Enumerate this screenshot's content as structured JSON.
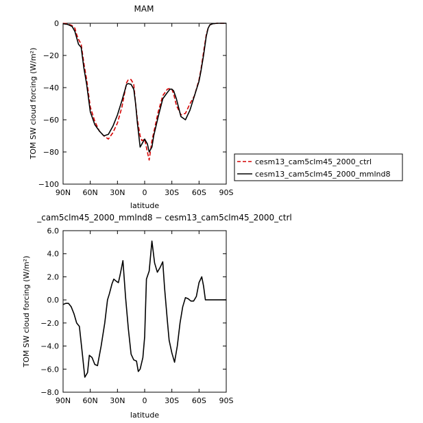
{
  "chart_data": [
    {
      "type": "line",
      "title": "MAM",
      "xlabel": "latitude",
      "ylabel": "TOM SW cloud forcing (W/m²)",
      "xlim": [
        90,
        -90
      ],
      "ylim": [
        -100,
        0
      ],
      "xticks": [
        90,
        60,
        30,
        0,
        -30,
        -60,
        -90
      ],
      "xtick_labels": [
        "90N",
        "60N",
        "30N",
        "0",
        "30S",
        "60S",
        "90S"
      ],
      "yticks": [
        0,
        -20,
        -40,
        -60,
        -80,
        -100
      ],
      "ytick_labels": [
        "0",
        "−20",
        "−40",
        "−60",
        "−80",
        "−100"
      ],
      "legend": "right",
      "series": [
        {
          "name": "cesm13_cam5clm45_2000_ctrl",
          "color": "#d40000",
          "dash": true,
          "x": [
            90,
            85,
            80,
            77,
            75,
            73,
            70,
            67,
            64,
            60,
            55,
            50,
            45,
            40,
            35,
            30,
            25,
            20,
            18,
            15,
            12,
            10,
            8,
            5,
            3,
            0,
            -3,
            -5,
            -8,
            -10,
            -15,
            -20,
            -25,
            -28,
            -30,
            -32,
            -35,
            -40,
            -45,
            -50,
            -55,
            -60,
            -62,
            -65,
            -68,
            -70,
            -72,
            -75,
            -80,
            -85,
            -90
          ],
          "y": [
            0,
            -0.3,
            -1.5,
            -3,
            -7,
            -10,
            -13,
            -25,
            -35,
            -52,
            -61,
            -67,
            -70,
            -72,
            -68,
            -62,
            -52,
            -37,
            -35,
            -35,
            -38,
            -50,
            -60,
            -70,
            -73,
            -72,
            -80,
            -85,
            -73,
            -68,
            -55,
            -45,
            -41,
            -40.5,
            -41,
            -44,
            -51,
            -57,
            -56,
            -50,
            -45,
            -35,
            -29,
            -18,
            -7,
            -3,
            -1,
            -0.3,
            0,
            0,
            0
          ]
        },
        {
          "name": "cesm13_cam5clm45_2000_mmlnd8",
          "color": "#000000",
          "dash": false,
          "x": [
            90,
            85,
            80,
            77,
            75,
            73,
            70,
            67,
            64,
            60,
            55,
            50,
            45,
            40,
            35,
            30,
            25,
            20,
            18,
            15,
            12,
            10,
            8,
            5,
            3,
            0,
            -3,
            -5,
            -8,
            -10,
            -15,
            -20,
            -25,
            -28,
            -30,
            -32,
            -35,
            -40,
            -45,
            -50,
            -55,
            -60,
            -62,
            -65,
            -68,
            -70,
            -72,
            -75,
            -80,
            -85,
            -90
          ],
          "y": [
            -0.3,
            -0.7,
            -2,
            -5,
            -9,
            -13,
            -15,
            -28,
            -38,
            -55,
            -63,
            -67,
            -70,
            -69,
            -64,
            -57,
            -48,
            -38,
            -37.5,
            -38,
            -41,
            -50,
            -62,
            -77,
            -75,
            -72,
            -75,
            -80,
            -77,
            -70,
            -58,
            -47,
            -43,
            -41,
            -41,
            -42,
            -47,
            -58,
            -60,
            -54,
            -45,
            -36,
            -30,
            -20,
            -8,
            -3,
            -1,
            -0.3,
            0,
            0,
            0
          ]
        }
      ]
    },
    {
      "type": "line",
      "title": "_cam5clm45_2000_mmlnd8 − cesm13_cam5clm45_2000_ctrl",
      "xlabel": "latitude",
      "ylabel": "TOM SW cloud forcing (W/m²)",
      "xlim": [
        90,
        -90
      ],
      "ylim": [
        -8,
        6
      ],
      "xticks": [
        90,
        60,
        30,
        0,
        -30,
        -60,
        -90
      ],
      "xtick_labels": [
        "90N",
        "60N",
        "30N",
        "0",
        "30S",
        "60S",
        "90S"
      ],
      "yticks": [
        6,
        4,
        2,
        0,
        -2,
        -4,
        -6,
        -8
      ],
      "ytick_labels": [
        "6.0",
        "4.0",
        "2.0",
        "0.0",
        "−2.0",
        "−4.0",
        "−6.0",
        "−8.0"
      ],
      "series": [
        {
          "name": "",
          "color": "#000000",
          "dash": false,
          "x": [
            90,
            87,
            84,
            81,
            78,
            75,
            72,
            69,
            66,
            63,
            61,
            58,
            55,
            52,
            48,
            44,
            41,
            39,
            36,
            34,
            31,
            29,
            27,
            24,
            21,
            18,
            15,
            12,
            9,
            7,
            5,
            2,
            0,
            -2,
            -5,
            -8,
            -11,
            -14,
            -17,
            -20,
            -22,
            -25,
            -27,
            -30,
            -33,
            -36,
            -39,
            -42,
            -45,
            -48,
            -51,
            -54,
            -57,
            -60,
            -63,
            -65,
            -67,
            -70,
            -73,
            -76,
            -80,
            -85,
            -90
          ],
          "y": [
            -0.4,
            -0.3,
            -0.3,
            -0.6,
            -1.2,
            -2,
            -2.3,
            -4.5,
            -6.7,
            -6.3,
            -4.8,
            -5.0,
            -5.6,
            -5.7,
            -4.0,
            -2.0,
            0.0,
            0.5,
            1.4,
            1.8,
            1.6,
            1.5,
            2.2,
            3.4,
            0.2,
            -2.5,
            -4.7,
            -5.2,
            -5.3,
            -6.2,
            -6.0,
            -5.0,
            -3.2,
            1.8,
            2.5,
            5.1,
            3.2,
            2.4,
            2.8,
            3.3,
            1.0,
            -1.8,
            -3.5,
            -4.6,
            -5.4,
            -4.0,
            -2.0,
            -0.6,
            0.2,
            0.1,
            -0.1,
            -0.1,
            0.3,
            1.5,
            2.0,
            1.2,
            0.0,
            0.0,
            0.0,
            0.0,
            0.0,
            0.0,
            0.0
          ]
        }
      ]
    }
  ]
}
